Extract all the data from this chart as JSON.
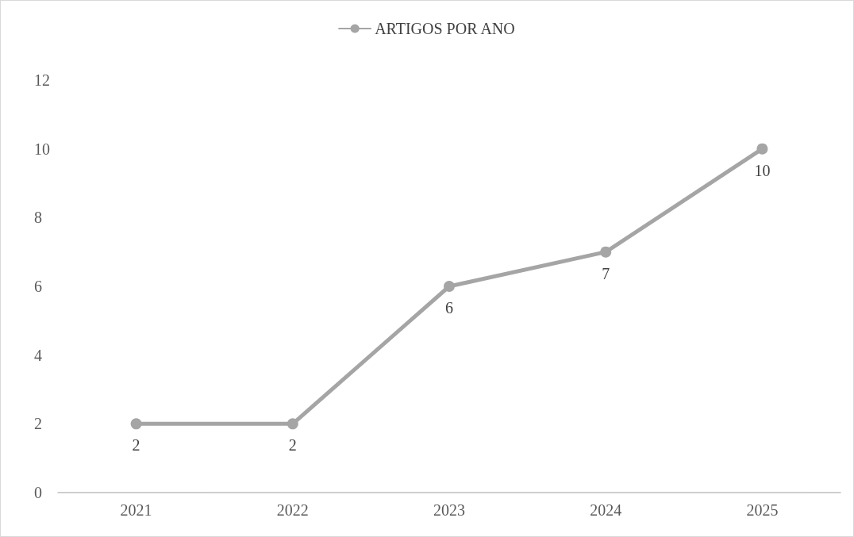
{
  "chart_data": {
    "type": "line",
    "categories": [
      "2021",
      "2022",
      "2023",
      "2024",
      "2025"
    ],
    "series": [
      {
        "name": "ARTIGOS POR ANO",
        "color": "#a5a5a5",
        "values": [
          2,
          2,
          6,
          7,
          10
        ]
      }
    ],
    "ylim": [
      0,
      12
    ],
    "yticks": [
      0,
      2,
      4,
      6,
      8,
      10,
      12
    ],
    "grid": false,
    "legend": "top",
    "marker": "circle",
    "line_style": "solid",
    "data_labels": true
  }
}
